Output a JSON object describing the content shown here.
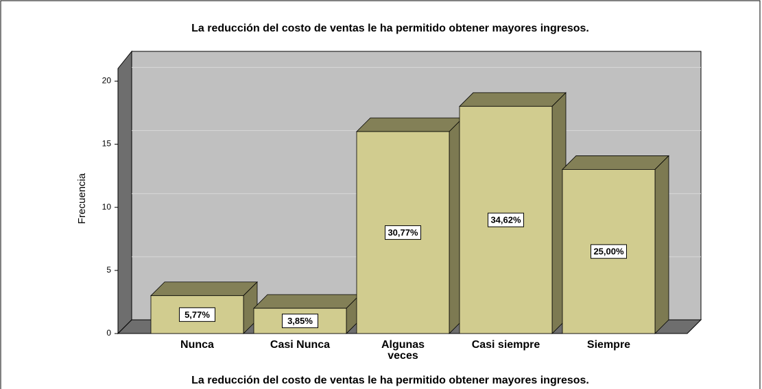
{
  "chart_data": {
    "type": "bar3d",
    "title": "La reducción del costo de ventas le ha permitido obtener mayores ingresos.",
    "x_label": "La reducción del costo de ventas le ha permitido obtener mayores ingresos.",
    "y_label": "Frecuencia",
    "categories": [
      "Nunca",
      "Casi Nunca",
      "Algunas veces",
      "Casi siempre",
      "Siempre"
    ],
    "values": [
      3,
      2,
      16,
      18,
      13
    ],
    "percentages": [
      5.77,
      3.85,
      30.77,
      34.62,
      25.0
    ],
    "percentage_labels": [
      "5,77%",
      "3,85%",
      "30,77%",
      "34,62%",
      "25,00%"
    ],
    "color": "#d1cc8f",
    "ylim": [
      0,
      21
    ],
    "yticks": [
      0,
      5,
      10,
      15,
      20
    ],
    "grid": true
  }
}
